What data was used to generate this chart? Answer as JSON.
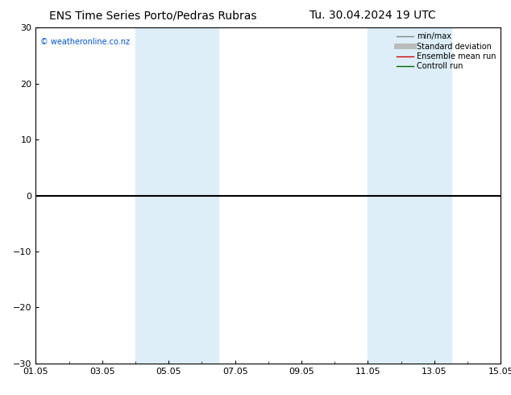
{
  "title_left": "ENS Time Series Porto/Pedras Rubras",
  "title_right": "Tu. 30.04.2024 19 UTC",
  "ylim": [
    -30,
    30
  ],
  "yticks": [
    -30,
    -20,
    -10,
    0,
    10,
    20,
    30
  ],
  "xtick_labels": [
    "01.05",
    "03.05",
    "05.05",
    "07.05",
    "09.05",
    "11.05",
    "13.05",
    "15.05"
  ],
  "xtick_positions": [
    0,
    2,
    4,
    6,
    8,
    10,
    12,
    14
  ],
  "xlim": [
    0,
    14
  ],
  "shade_bands": [
    {
      "start": 3.0,
      "end": 4.0
    },
    {
      "start": 4.0,
      "end": 5.5
    },
    {
      "start": 10.0,
      "end": 11.0
    },
    {
      "start": 11.0,
      "end": 12.5
    }
  ],
  "shade_color": "#ddeef8",
  "hline_y": 0,
  "hline_color": "#000000",
  "hline_lw": 1.5,
  "watermark": "© weatheronline.co.nz",
  "watermark_color": "#0055cc",
  "legend_entries": [
    {
      "label": "min/max",
      "color": "#888888",
      "lw": 1.0
    },
    {
      "label": "Standard deviation",
      "color": "#bbbbbb",
      "lw": 5
    },
    {
      "label": "Ensemble mean run",
      "color": "#cc0000",
      "lw": 1.0
    },
    {
      "label": "Controll run",
      "color": "#006600",
      "lw": 1.0
    }
  ],
  "bg_color": "#ffffff",
  "title_fontsize": 10,
  "tick_fontsize": 8,
  "legend_fontsize": 7,
  "watermark_fontsize": 7,
  "fig_width": 6.34,
  "fig_height": 4.9,
  "dpi": 100
}
